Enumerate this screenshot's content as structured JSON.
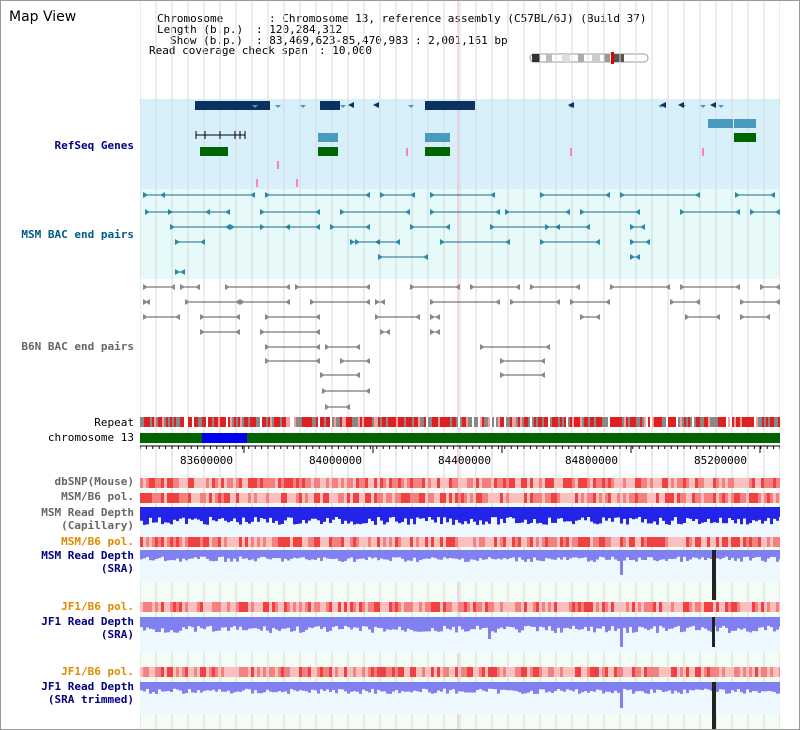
{
  "title": "Map View",
  "info": {
    "chromosome_label": "Chromosome",
    "chromosome_value": ": Chromosome 13, reference assembly (C57BL/6J) (Build 37)",
    "length_label": "Length (b.p.)",
    "length_value": ": 120,284,312",
    "show_label": "Show (b.p.)",
    "show_value": ": 83,469,623-85,470,983 : 2,001,161 bp",
    "coverage_label": "Read coverage check span",
    "coverage_value": ": 10,000"
  },
  "tracks": {
    "refseq": "RefSeq Genes",
    "msm_bac": "MSM BAC end pairs",
    "b6n_bac": "B6N BAC end pairs",
    "repeat": "Repeat",
    "chromosome": "chromosome 13",
    "dbsnp": "dbSNP(Mouse)",
    "msm_b6_pol": "MSM/B6 pol.",
    "msm_depth_cap_1": "MSM Read Depth",
    "msm_depth_cap_2": "(Capillary)",
    "msm_b6_pol2": "MSM/B6 pol.",
    "msm_depth_sra_1": "MSM Read Depth",
    "msm_depth_sra_2": "(SRA)",
    "jf1_b6_pol": "JF1/B6 pol.",
    "jf1_depth_sra_1": "JF1 Read Depth",
    "jf1_depth_sra_2": "(SRA)",
    "jf1_b6_pol2": "JF1/B6 pol.",
    "jf1_depth_trim_1": "JF1 Read Depth",
    "jf1_depth_trim_2": "(SRA trimmed)"
  },
  "axis": {
    "ticks": [
      "83600000",
      "84000000",
      "84400000",
      "84800000",
      "85200000"
    ]
  },
  "colors": {
    "refseq_bg": "#d8f0fa",
    "msm_bg": "#e6fafa",
    "depth_bg": "#f0fdf2",
    "depth_blue": "#2424e8",
    "depth_light": "#8080f0",
    "pol_red": "#f07070",
    "chrom_green": "#006400",
    "chrom_blue": "#0000ee"
  }
}
